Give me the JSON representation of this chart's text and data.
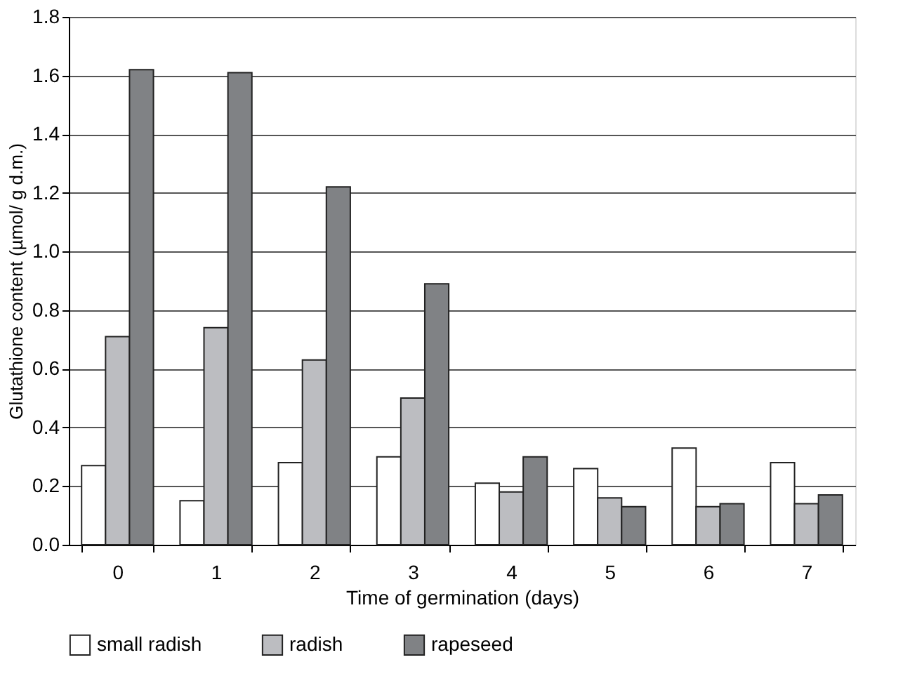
{
  "chart_data": {
    "type": "bar",
    "xlabel": "Time of germination (days)",
    "ylabel": "Glutathione content (µmol/ g d.m.)",
    "categories": [
      "0",
      "1",
      "2",
      "3",
      "4",
      "5",
      "6",
      "7"
    ],
    "series": [
      {
        "name": "small radish",
        "color": "#ffffff",
        "values": [
          0.27,
          0.15,
          0.28,
          0.3,
          0.21,
          0.26,
          0.33,
          0.28
        ]
      },
      {
        "name": "radish",
        "color": "#bcbdc1",
        "values": [
          0.71,
          0.74,
          0.63,
          0.5,
          0.18,
          0.16,
          0.13,
          0.14
        ]
      },
      {
        "name": "rapeseed",
        "color": "#808285",
        "values": [
          1.62,
          1.61,
          1.22,
          0.89,
          0.3,
          0.13,
          0.14,
          0.17
        ]
      }
    ],
    "ylim": [
      0,
      1.8
    ],
    "yticks": [
      {
        "value": 0,
        "label": "0.0"
      },
      {
        "value": 0.2,
        "label": "0.2"
      },
      {
        "value": 0.4,
        "label": "0.4"
      },
      {
        "value": 0.6,
        "label": "0.6"
      },
      {
        "value": 0.8,
        "label": "0.8"
      },
      {
        "value": 1.0,
        "label": "1.0"
      },
      {
        "value": 1.2,
        "label": "1.2"
      },
      {
        "value": 1.4,
        "label": "1.4"
      },
      {
        "value": 1.6,
        "label": "1.6"
      },
      {
        "value": 1.8,
        "label": "1.8"
      }
    ],
    "grid": "y",
    "legend": "bottom"
  }
}
